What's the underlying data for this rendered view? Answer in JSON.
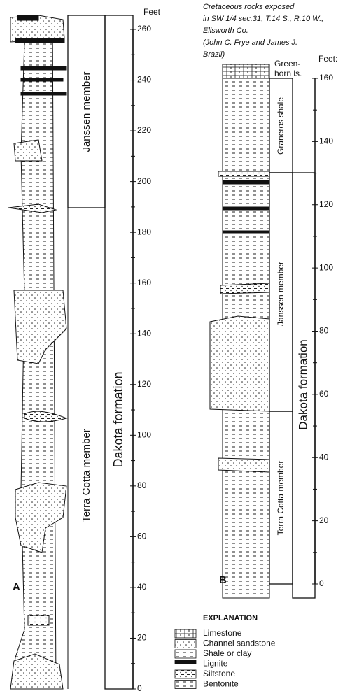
{
  "column_a": {
    "label": "A",
    "scale_unit": "Feet",
    "ticks": [
      0,
      20,
      40,
      60,
      80,
      100,
      120,
      140,
      160,
      180,
      200,
      220,
      240,
      260
    ],
    "members": [
      "Janssen member",
      "Terra Cotta member"
    ],
    "formation": "Dakota formation"
  },
  "column_b": {
    "label": "B",
    "scale_unit": "Feet:",
    "caption": [
      "Cretaceous rocks exposed",
      "in SW 1/4 sec.31, T.14 S., R.10 W.,",
      "Ellsworth Co.",
      "(John C. Frye and James J.",
      "Brazil)"
    ],
    "ticks": [
      0,
      20,
      40,
      60,
      80,
      100,
      120,
      140,
      160
    ],
    "top_unit": [
      "Green-",
      "horn ls."
    ],
    "members": [
      "Graneros shale",
      "Janssen member",
      "Terra Cotta member"
    ],
    "formation": "Dakota formation"
  },
  "explanation": {
    "title": "EXPLANATION",
    "items": [
      "Limestone",
      "Channel sandstone",
      "Shale or clay",
      "Lignite",
      "Siltstone",
      "Bentonite"
    ]
  }
}
